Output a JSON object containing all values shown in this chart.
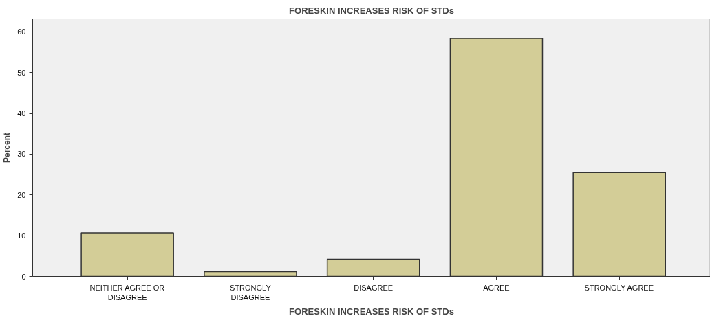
{
  "chart_data": {
    "type": "bar",
    "title": "FORESKIN INCREASES RISK OF STDs",
    "xlabel": "FORESKIN INCREASES RISK OF STDs",
    "ylabel": "Percent",
    "categories": [
      "NEITHER AGREE OR DISAGREE",
      "STRONGLY DISAGREE",
      "DISAGREE",
      "AGREE",
      "STRONGLY AGREE"
    ],
    "values": [
      10.7,
      1.2,
      4.2,
      58.4,
      25.5
    ],
    "color": "#d3cd97",
    "ylim": [
      0,
      63.2
    ],
    "yticks": [
      0,
      10,
      20,
      30,
      40,
      50,
      60
    ],
    "grid": false
  }
}
